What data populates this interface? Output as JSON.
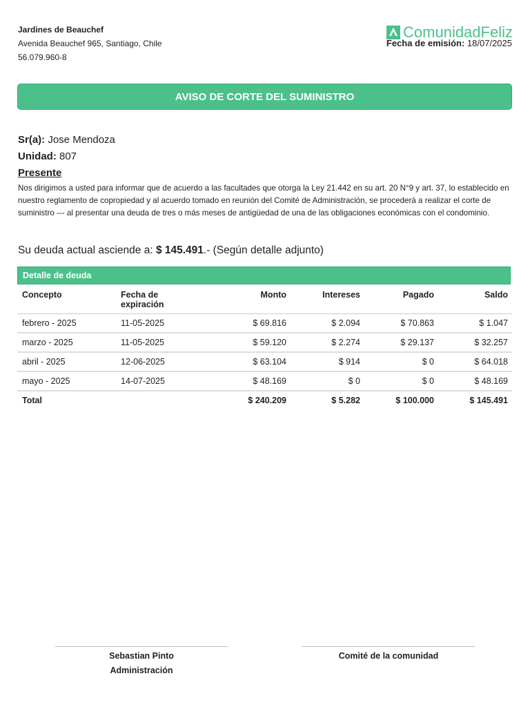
{
  "header": {
    "org_name": "Jardines de Beauchef",
    "address": "Avenida Beauchef 965, Santiago, Chile",
    "rut": "56.079.960-8",
    "logo_text": "ComunidadFeliz",
    "emission_label": "Fecha de emisión:",
    "emission_date": "18/07/2025"
  },
  "banner": "AVISO DE CORTE DEL SUMINISTRO",
  "recipient": {
    "sr_label": "Sr(a):",
    "sr_value": "Jose Mendoza",
    "unit_label": "Unidad:",
    "unit_value": "807",
    "presente": "Presente"
  },
  "body": "Nos dirigimos a usted para informar que de acuerdo a las facultades que otorga la Ley 21.442 en su art. 20 N°9 y art. 37, lo establecido en nuestro reglamento de copropiedad y al acuerdo tomado en reunión del Comité de Administración, se procederá a realizar el corte de suministro --- al presentar una deuda de tres o más meses de antigüedad de una de las obligaciones económicas con el condominio.",
  "debt": {
    "prefix": "Su deuda actual asciende a:",
    "amount": "$ 145.491",
    "suffix": ".- (Según detalle adjunto)"
  },
  "table": {
    "title": "Detalle de deuda",
    "columns": [
      "Concepto",
      "Fecha de expiración",
      "Monto",
      "Intereses",
      "Pagado",
      "Saldo"
    ],
    "rows": [
      [
        "febrero - 2025",
        "11-05-2025",
        "$ 69.816",
        "$ 2.094",
        "$ 70.863",
        "$ 1.047"
      ],
      [
        "marzo - 2025",
        "11-05-2025",
        "$ 59.120",
        "$ 2.274",
        "$ 29.137",
        "$ 32.257"
      ],
      [
        "abril - 2025",
        "12-06-2025",
        "$ 63.104",
        "$ 914",
        "$ 0",
        "$ 64.018"
      ],
      [
        "mayo - 2025",
        "14-07-2025",
        "$ 48.169",
        "$ 0",
        "$ 0",
        "$ 48.169"
      ]
    ],
    "total": [
      "Total",
      "",
      "$ 240.209",
      "$ 5.282",
      "$ 100.000",
      "$ 145.491"
    ]
  },
  "signatures": {
    "left_name": "Sebastian Pinto",
    "left_role": "Administración",
    "right_name": "Comité de la comunidad"
  },
  "colors": {
    "accent": "#4cc08b"
  }
}
